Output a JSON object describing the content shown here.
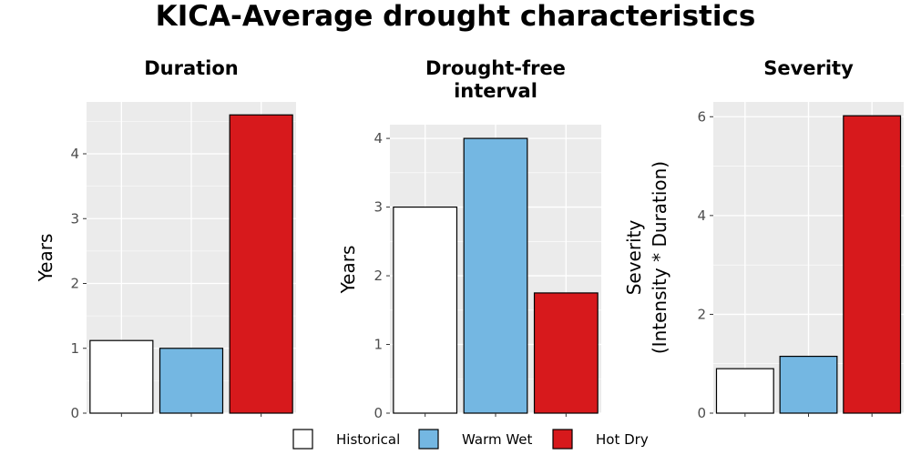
{
  "title": "KICA-Average drought characteristics",
  "colors": {
    "panel_bg": "#ebebeb",
    "grid": "#ffffff",
    "bar_stroke": "#000000"
  },
  "legend": {
    "entries": [
      {
        "label": "Historical",
        "color": "#ffffff"
      },
      {
        "label": "Warm Wet",
        "color": "#74b7e2"
      },
      {
        "label": "Hot Dry",
        "color": "#d7191c"
      }
    ]
  },
  "chart_data": [
    {
      "type": "bar",
      "title": [
        "Duration"
      ],
      "ylabel": [
        "Years"
      ],
      "categories": [
        "Historical",
        "Warm Wet",
        "Hot Dry"
      ],
      "values": [
        1.12,
        1.0,
        4.6
      ],
      "ylim": [
        0,
        4.8
      ],
      "yticks": [
        0,
        1,
        2,
        3,
        4
      ],
      "grid": true
    },
    {
      "type": "bar",
      "title": [
        "Drought-free",
        "interval"
      ],
      "ylabel": [
        "Years"
      ],
      "categories": [
        "Historical",
        "Warm Wet",
        "Hot Dry"
      ],
      "values": [
        3.0,
        4.0,
        1.75
      ],
      "ylim": [
        0,
        4.2
      ],
      "yticks": [
        0,
        1,
        2,
        3,
        4
      ],
      "grid": true
    },
    {
      "type": "bar",
      "title": [
        "Severity"
      ],
      "ylabel": [
        "Severity",
        "(Intensity * Duration)"
      ],
      "categories": [
        "Historical",
        "Warm Wet",
        "Hot Dry"
      ],
      "values": [
        0.9,
        1.15,
        6.02
      ],
      "ylim": [
        0,
        6.3
      ],
      "yticks": [
        0,
        2,
        4,
        6
      ],
      "grid": true
    }
  ]
}
